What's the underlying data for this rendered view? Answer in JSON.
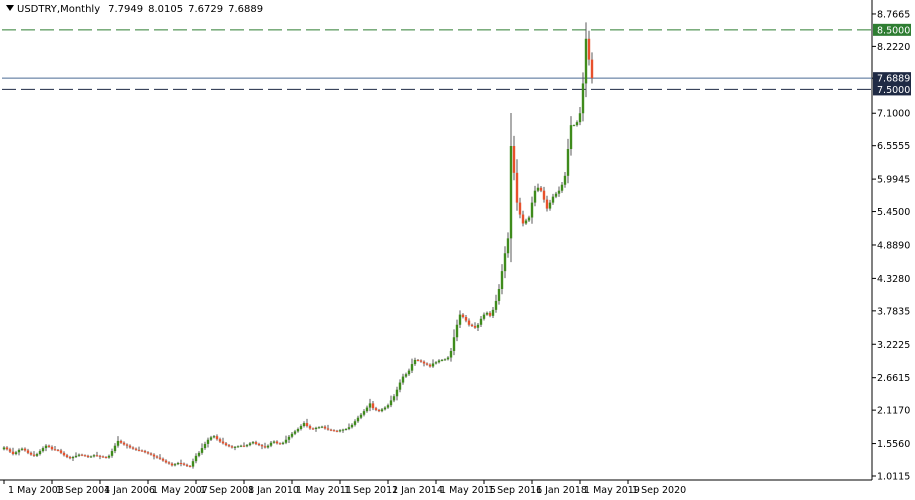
{
  "header": {
    "symbol": "USDTRY,Monthly",
    "open": "7.7949",
    "high": "8.0105",
    "low": "7.6729",
    "close": "7.6889"
  },
  "colors": {
    "up": "#3f8b1c",
    "down": "#e8502c",
    "wick": "#555555",
    "hline": "#2e7d32",
    "current_line": "#4a6a95",
    "current_label_bg": "#1f2a44",
    "level_label_green_bg": "#2e7d32",
    "level_label_dark_bg": "#1f2a44",
    "grid_axis": "#000000"
  },
  "chart_data": {
    "type": "candlestick",
    "y_scale": "linear",
    "ylim": [
      1.0115,
      8.9
    ],
    "y_ticks": [
      "8.7665",
      "8.2220",
      "7.6889",
      "7.1000",
      "6.5555",
      "5.9945",
      "5.4500",
      "4.8890",
      "4.3280",
      "3.7835",
      "3.2225",
      "2.6615",
      "2.1170",
      "1.5560",
      "1.0115"
    ],
    "x_ticks": [
      "1 May 2003",
      "1 Sep 2004",
      "1 Jan 2006",
      "1 May 2007",
      "1 Sep 2008",
      "1 Jan 2010",
      "1 May 2011",
      "1 Sep 2012",
      "1 Jan 2014",
      "1 May 2015",
      "1 Sep 2016",
      "1 Jan 2018",
      "1 May 2019",
      "1 Sep 2020"
    ],
    "x_tick_bar_index": [
      0,
      16,
      32,
      48,
      64,
      80,
      96,
      112,
      128,
      144,
      160,
      176,
      192,
      208
    ],
    "horizontal_levels": [
      {
        "value": 8.5,
        "label": "8.5000",
        "style": "dashed-green"
      },
      {
        "value": 7.5,
        "label": "7.5000",
        "style": "dashed-dark"
      }
    ],
    "current_price": {
      "value": 7.6889,
      "label": "7.6889"
    },
    "closes": [
      1.49,
      1.46,
      1.42,
      1.38,
      1.41,
      1.45,
      1.47,
      1.44,
      1.4,
      1.37,
      1.35,
      1.38,
      1.43,
      1.48,
      1.52,
      1.5,
      1.46,
      1.45,
      1.44,
      1.4,
      1.36,
      1.33,
      1.31,
      1.33,
      1.35,
      1.37,
      1.36,
      1.35,
      1.33,
      1.34,
      1.36,
      1.35,
      1.34,
      1.33,
      1.32,
      1.35,
      1.43,
      1.52,
      1.6,
      1.57,
      1.54,
      1.52,
      1.49,
      1.47,
      1.45,
      1.44,
      1.43,
      1.41,
      1.39,
      1.37,
      1.34,
      1.32,
      1.3,
      1.27,
      1.24,
      1.22,
      1.19,
      1.21,
      1.23,
      1.22,
      1.2,
      1.18,
      1.17,
      1.26,
      1.35,
      1.4,
      1.48,
      1.55,
      1.62,
      1.66,
      1.68,
      1.63,
      1.59,
      1.56,
      1.53,
      1.51,
      1.49,
      1.5,
      1.51,
      1.52,
      1.51,
      1.53,
      1.56,
      1.58,
      1.55,
      1.53,
      1.51,
      1.49,
      1.52,
      1.57,
      1.59,
      1.56,
      1.55,
      1.57,
      1.62,
      1.67,
      1.72,
      1.76,
      1.8,
      1.85,
      1.9,
      1.85,
      1.81,
      1.8,
      1.82,
      1.83,
      1.84,
      1.81,
      1.79,
      1.78,
      1.77,
      1.76,
      1.78,
      1.79,
      1.8,
      1.83,
      1.87,
      1.93,
      1.99,
      2.04,
      2.1,
      2.16,
      2.23,
      2.15,
      2.12,
      2.1,
      2.13,
      2.16,
      2.2,
      2.28,
      2.35,
      2.46,
      2.58,
      2.68,
      2.72,
      2.78,
      2.89,
      2.96,
      2.95,
      2.93,
      2.9,
      2.88,
      2.85,
      2.9,
      2.92,
      2.95,
      2.96,
      2.97,
      3.0,
      3.11,
      3.34,
      3.55,
      3.72,
      3.68,
      3.62,
      3.55,
      3.53,
      3.5,
      3.55,
      3.65,
      3.72,
      3.75,
      3.7,
      3.8,
      3.95,
      4.15,
      4.45,
      4.75,
      5.0,
      6.55,
      6.1,
      5.6,
      5.4,
      5.25,
      5.3,
      5.35,
      5.6,
      5.8,
      5.85,
      5.8,
      5.65,
      5.5,
      5.6,
      5.7,
      5.75,
      5.8,
      5.9,
      6.05,
      6.5,
      6.9,
      6.9,
      6.95,
      7.1,
      7.6,
      8.35,
      8.0,
      7.6889
    ]
  }
}
